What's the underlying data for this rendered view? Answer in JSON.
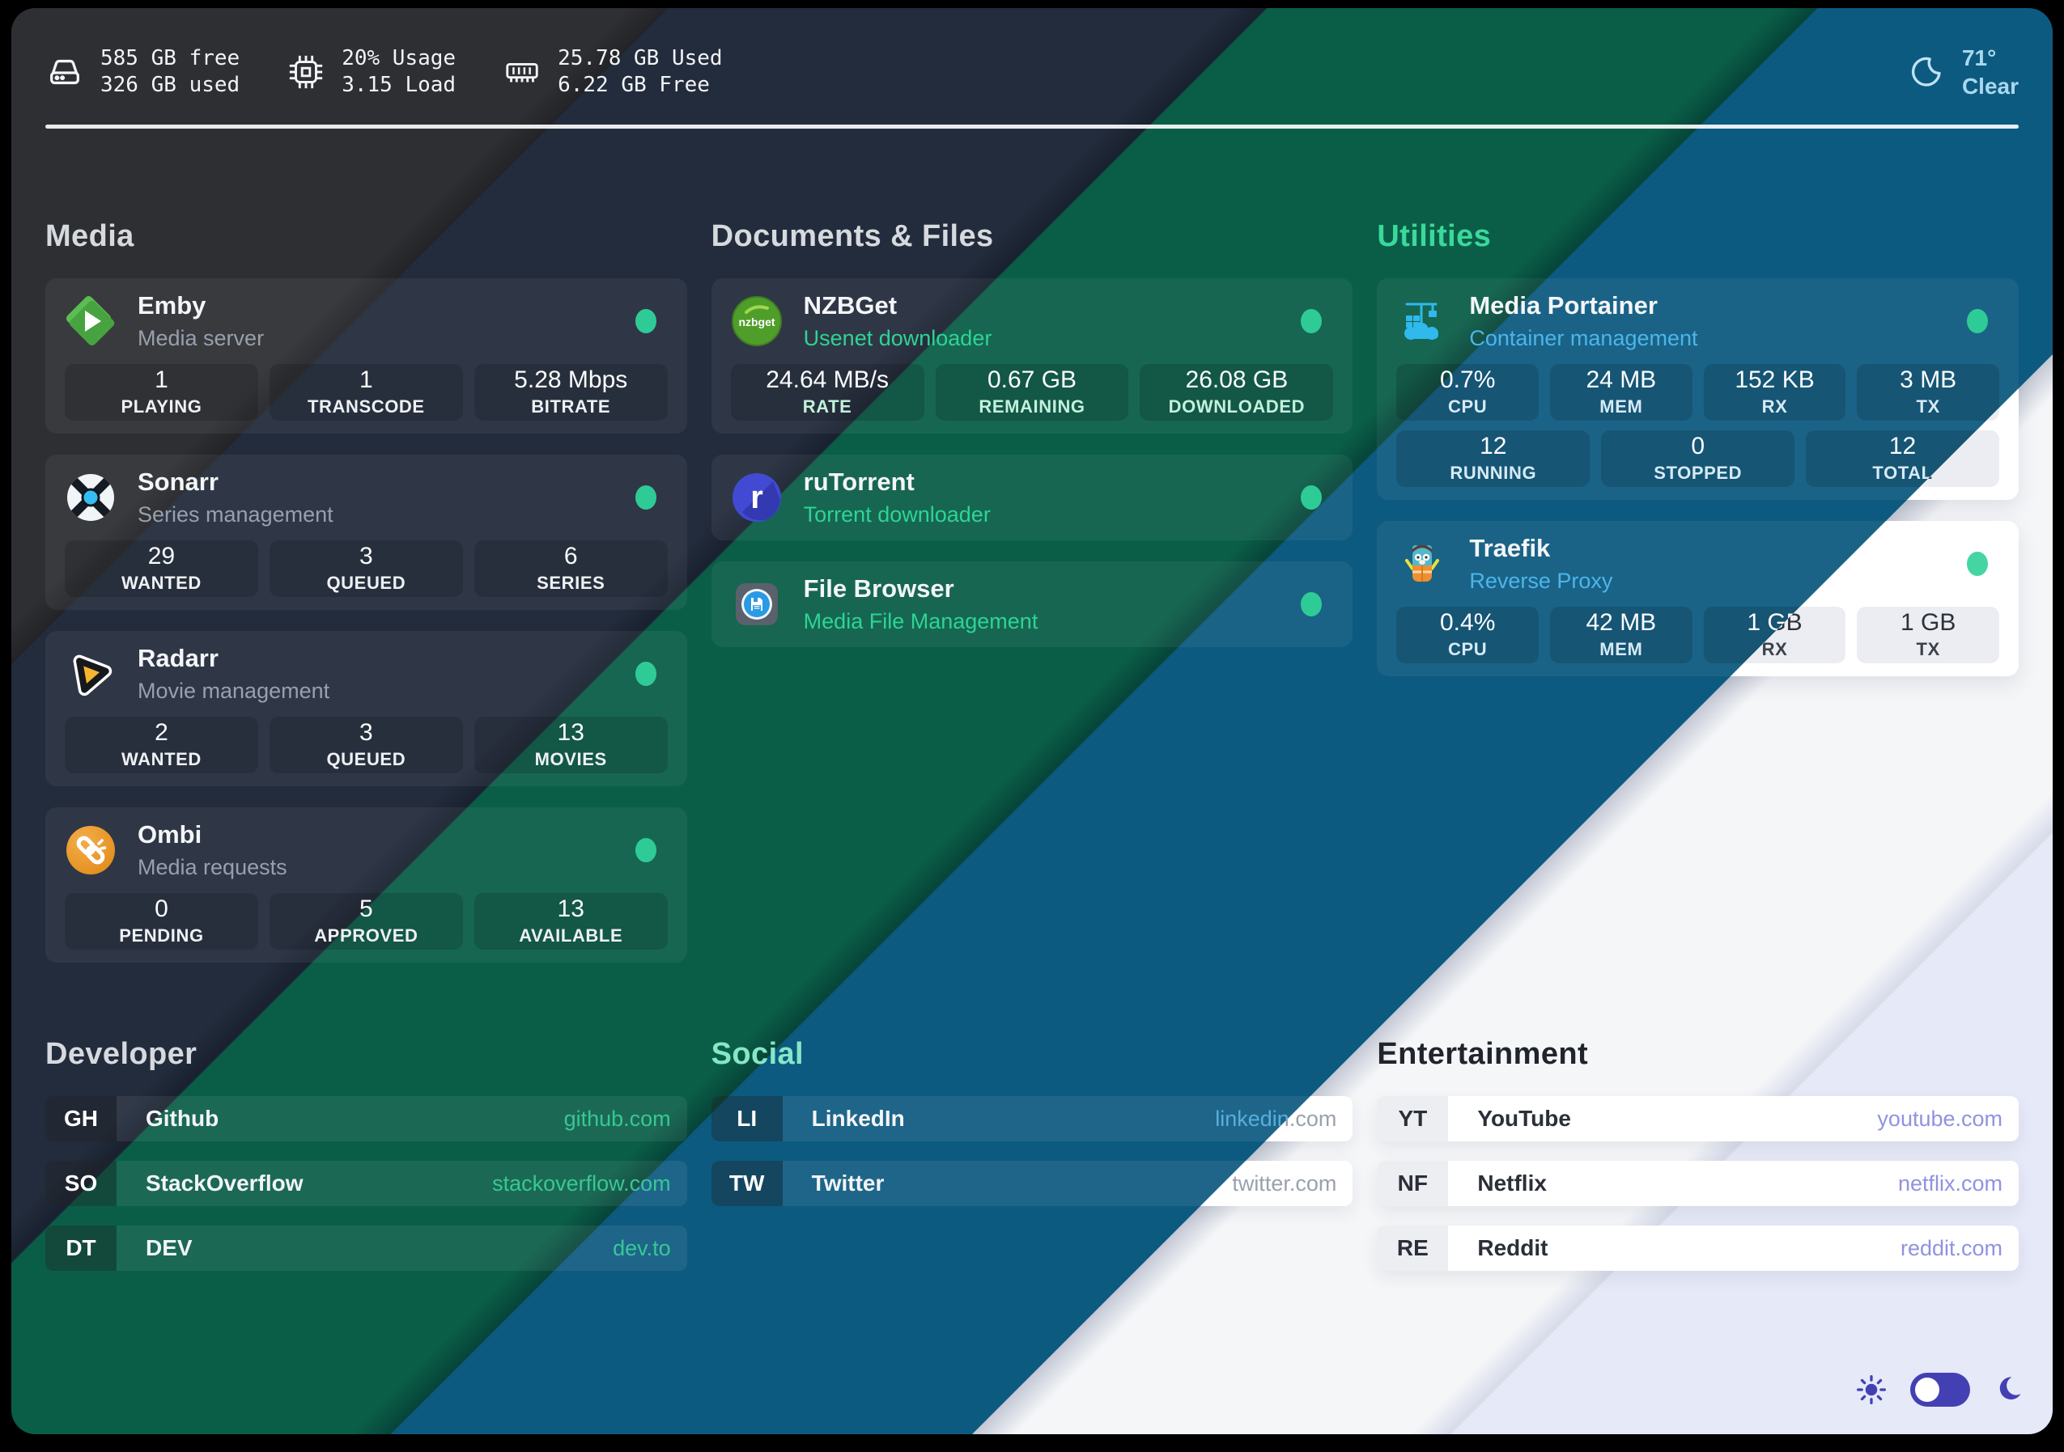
{
  "topbar": {
    "disk": [
      "585 GB free",
      "326 GB used"
    ],
    "cpu": [
      "20% Usage",
      "3.15 Load"
    ],
    "ram": [
      "25.78 GB Used",
      "6.22 GB Free"
    ],
    "weather": {
      "temp": "71°",
      "condition": "Clear"
    }
  },
  "palette": {
    "band_charcoal": "#2e2f33",
    "band_navy": "#232c3c",
    "band_green": "#0a5e48",
    "band_blue": "#0d5a80",
    "band_white": "#f5f6f8",
    "band_lavender": "#e6e9f7",
    "status_dot": "#2fcb96",
    "accent_mint": "#2ed494",
    "accent_blue": "#4cb5ea",
    "accent_indigo": "#4340b4"
  },
  "groups": {
    "media": {
      "title": "Media",
      "cards": [
        {
          "name": "Emby",
          "desc": "Media server",
          "icon": "emby-icon",
          "stats": [
            {
              "value": "1",
              "label": "PLAYING"
            },
            {
              "value": "1",
              "label": "TRANSCODE"
            },
            {
              "value": "5.28 Mbps",
              "label": "BITRATE"
            }
          ]
        },
        {
          "name": "Sonarr",
          "desc": "Series management",
          "icon": "sonarr-icon",
          "stats": [
            {
              "value": "29",
              "label": "WANTED"
            },
            {
              "value": "3",
              "label": "QUEUED"
            },
            {
              "value": "6",
              "label": "SERIES"
            }
          ]
        },
        {
          "name": "Radarr",
          "desc": "Movie management",
          "icon": "radarr-icon",
          "stats": [
            {
              "value": "2",
              "label": "WANTED"
            },
            {
              "value": "3",
              "label": "QUEUED"
            },
            {
              "value": "13",
              "label": "MOVIES"
            }
          ]
        },
        {
          "name": "Ombi",
          "desc": "Media requests",
          "icon": "ombi-icon",
          "stats": [
            {
              "value": "0",
              "label": "PENDING"
            },
            {
              "value": "5",
              "label": "APPROVED"
            },
            {
              "value": "13",
              "label": "AVAILABLE"
            }
          ]
        }
      ]
    },
    "documents": {
      "title": "Documents & Files",
      "cards": [
        {
          "name": "NZBGet",
          "desc": "Usenet downloader",
          "icon": "nzbget-icon",
          "stats": [
            {
              "value": "24.64 MB/s",
              "label": "RATE"
            },
            {
              "value": "0.67 GB",
              "label": "REMAINING"
            },
            {
              "value": "26.08 GB",
              "label": "DOWNLOADED"
            }
          ]
        },
        {
          "name": "ruTorrent",
          "desc": "Torrent downloader",
          "icon": "rutorrent-icon"
        },
        {
          "name": "File Browser",
          "desc": "Media File Management",
          "icon": "filebrowser-icon"
        }
      ]
    },
    "utilities": {
      "title": "Utilities",
      "cards": [
        {
          "name": "Media Portainer",
          "desc": "Container management",
          "icon": "portainer-icon",
          "stats": [
            {
              "value": "0.7%",
              "label": "CPU"
            },
            {
              "value": "24 MB",
              "label": "MEM"
            },
            {
              "value": "152 KB",
              "label": "RX"
            },
            {
              "value": "3 MB",
              "label": "TX"
            }
          ],
          "stats2": [
            {
              "value": "12",
              "label": "RUNNING"
            },
            {
              "value": "0",
              "label": "STOPPED"
            },
            {
              "value": "12",
              "label": "TOTAL"
            }
          ]
        },
        {
          "name": "Traefik",
          "desc": "Reverse Proxy",
          "icon": "traefik-icon",
          "stats": [
            {
              "value": "0.4%",
              "label": "CPU"
            },
            {
              "value": "42 MB",
              "label": "MEM"
            },
            {
              "value": "1 GB",
              "label": "RX"
            },
            {
              "value": "1 GB",
              "label": "TX"
            }
          ]
        }
      ]
    },
    "developer": {
      "title": "Developer",
      "links": [
        {
          "abbr": "GH",
          "name": "Github",
          "url": "github.com"
        },
        {
          "abbr": "SO",
          "name": "StackOverflow",
          "url": "stackoverflow.com"
        },
        {
          "abbr": "DT",
          "name": "DEV",
          "url": "dev.to"
        }
      ]
    },
    "social": {
      "title": "Social",
      "links": [
        {
          "abbr": "LI",
          "name": "LinkedIn",
          "url": "linkedin.com"
        },
        {
          "abbr": "TW",
          "name": "Twitter",
          "url": "twitter.com"
        }
      ]
    },
    "entertainment": {
      "title": "Entertainment",
      "links": [
        {
          "abbr": "YT",
          "name": "YouTube",
          "url": "youtube.com"
        },
        {
          "abbr": "NF",
          "name": "Netflix",
          "url": "netflix.com"
        },
        {
          "abbr": "RE",
          "name": "Reddit",
          "url": "reddit.com"
        }
      ]
    }
  }
}
